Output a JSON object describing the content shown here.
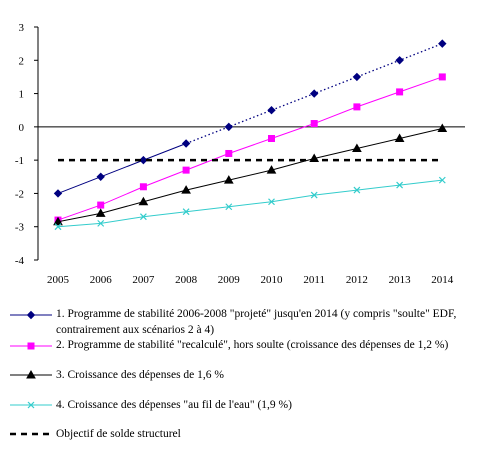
{
  "chart_data": {
    "type": "line",
    "title": "",
    "xlabel": "",
    "ylabel": "",
    "x": [
      2005,
      2006,
      2007,
      2008,
      2009,
      2010,
      2011,
      2012,
      2013,
      2014
    ],
    "x_tick_labels": [
      "2005",
      "2006",
      "2007",
      "2008",
      "2009",
      "2010",
      "2011",
      "2012",
      "2013",
      "2014"
    ],
    "ylim": [
      -4,
      3
    ],
    "y_ticks": [
      -4,
      -3,
      -2,
      -1,
      0,
      1,
      2,
      3
    ],
    "y_tick_labels": [
      "-4",
      "-3",
      "-2",
      "-1",
      "0",
      "1",
      "2",
      "3"
    ],
    "grid": false,
    "legend_position": "bottom",
    "series": [
      {
        "name": "1. Programme de stabilité 2006-2008 \"projeté\" jusqu'en 2014 (y compris \"soulte\" EDF, contrairement aux scénarios 2 à 4)",
        "values": [
          -2.0,
          -1.5,
          -1.0,
          -0.5,
          0.0,
          0.5,
          1.0,
          1.5,
          2.0,
          2.5
        ],
        "color": "#000080",
        "marker": "diamond",
        "solid_until": 2008,
        "dotted_after": 2008
      },
      {
        "name": "2. Programme de stabilité \"recalculé\", hors soulte (croissance des dépenses de 1,2 %)",
        "values": [
          -2.8,
          -2.35,
          -1.8,
          -1.3,
          -0.8,
          -0.35,
          0.1,
          0.6,
          1.05,
          1.5
        ],
        "color": "#ff00ff",
        "marker": "square"
      },
      {
        "name": "3. Croissance des dépenses de 1,6 %",
        "values": [
          -2.85,
          -2.6,
          -2.25,
          -1.9,
          -1.6,
          -1.3,
          -0.95,
          -0.65,
          -0.35,
          -0.05
        ],
        "color": "#000000",
        "marker": "triangle"
      },
      {
        "name": "4. Croissance des dépenses \"au fil de l'eau\" (1,9 %)",
        "values": [
          -3.0,
          -2.9,
          -2.7,
          -2.55,
          -2.4,
          -2.25,
          -2.05,
          -1.9,
          -1.75,
          -1.6
        ],
        "color": "#33cccc",
        "marker": "x"
      },
      {
        "name": "Objectif de solde structurel",
        "values": [
          -1.0,
          -1.0,
          -1.0,
          -1.0,
          -1.0,
          -1.0,
          -1.0,
          -1.0,
          -1.0,
          -1.0
        ],
        "color": "#000000",
        "marker": "none",
        "dashed": true
      }
    ]
  }
}
